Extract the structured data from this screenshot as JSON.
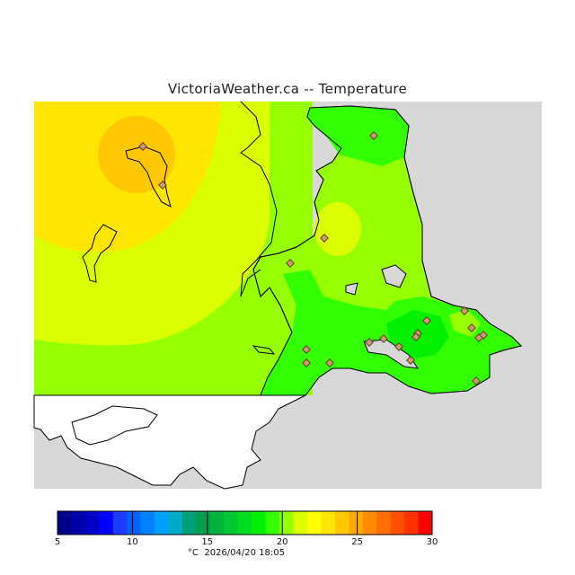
{
  "title": "VictoriaWeather.ca -- Temperature",
  "legend": {
    "ticks": [
      "5",
      "10",
      "15",
      "20",
      "25",
      "30"
    ],
    "unit": "°C",
    "timestamp": "2026/04/20 18:05",
    "colors": [
      "#00008b",
      "#0000a8",
      "#0000c8",
      "#0000ff",
      "#1e3cff",
      "#0064ff",
      "#0082ff",
      "#00a0ff",
      "#00aac8",
      "#00a078",
      "#00a050",
      "#00b43c",
      "#00c832",
      "#00dc1e",
      "#00f000",
      "#32ff00",
      "#96ff00",
      "#dcff00",
      "#ffff00",
      "#ffe600",
      "#ffc800",
      "#ffaa00",
      "#ff8c00",
      "#ff6e00",
      "#ff5000",
      "#ff3200",
      "#ff0000"
    ]
  },
  "map": {
    "background_color": "#d8d8d8",
    "zones": {
      "yellow_orange": "#ffc800",
      "yellow": "#ffe600",
      "yellow_green": "#dcff00",
      "lime": "#96ff00",
      "green": "#32ff00",
      "bright_green": "#00f000"
    }
  },
  "stations_count": 20
}
